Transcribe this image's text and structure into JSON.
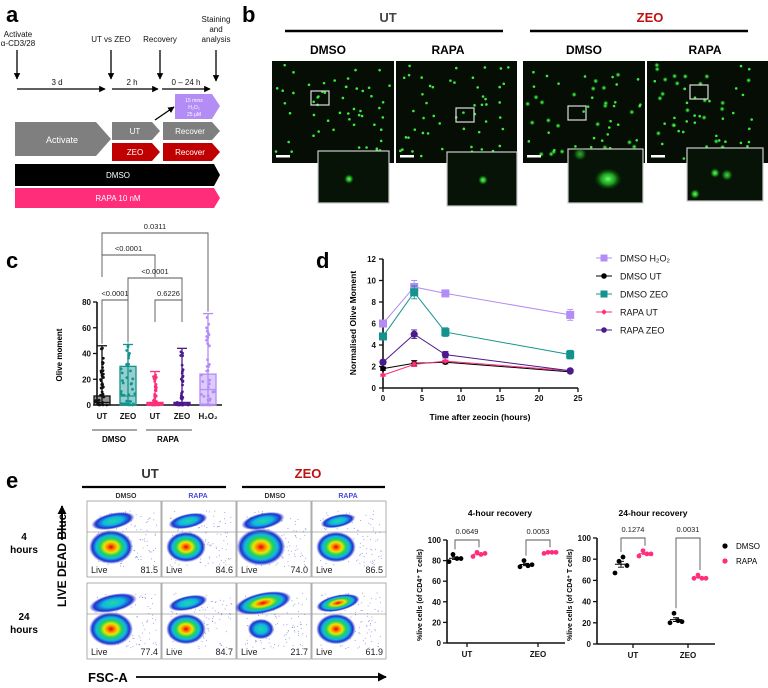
{
  "panel_labels": {
    "a": "a",
    "b": "b",
    "c": "c",
    "d": "d",
    "e": "e"
  },
  "colors": {
    "ut_gray": "#7f7f7f",
    "zeo_red": "#c00000",
    "dmso_black": "#000000",
    "rapa_pink": "#ff2d7a",
    "h2o2_purple": "#b38cf5",
    "teal": "#13938f",
    "rapa_zeo_purple": "#4b1a8c",
    "rapa_blue": "#4a4adf",
    "zeo_text_red": "#c01010"
  },
  "panel_a": {
    "events": {
      "activate_1": "Activate",
      "activate_2": "α-CD3/28",
      "ut_vs_zeo": "UT vs ZEO",
      "recovery": "Recovery",
      "staining_1": "Staining",
      "staining_2": "and",
      "staining_3": "analysis"
    },
    "durations": {
      "d1": "3 d",
      "d2": "2 h",
      "d3": "0 – 24 h"
    },
    "h2o2_box": {
      "line1": "15 mins",
      "line2": "H₂O₂",
      "line3": "25 µM"
    },
    "boxes": {
      "activate": "Activate",
      "ut": "UT",
      "zeo": "ZEO",
      "recover_ut": "Recover",
      "recover_zeo": "Recover",
      "dmso": "DMSO",
      "rapa": "RAPA 10 nM"
    }
  },
  "panel_b": {
    "groups": {
      "ut": "UT",
      "zeo": "ZEO"
    },
    "columns": [
      "DMSO",
      "RAPA",
      "DMSO",
      "RAPA"
    ]
  },
  "panel_e_flow": {
    "groups": {
      "ut": "UT",
      "zeo": "ZEO"
    },
    "columns": [
      "DMSO",
      "RAPA",
      "DMSO",
      "RAPA"
    ],
    "rows": [
      {
        "line1": "4",
        "line2": "hours"
      },
      {
        "line1": "24",
        "line2": "hours"
      }
    ],
    "gate_label": "Live",
    "values": [
      [
        "81.5",
        "84.6",
        "74.0",
        "86.5"
      ],
      [
        "77.4",
        "84.7",
        "21.7",
        "61.9"
      ]
    ],
    "ylabel": "LIVE DEAD Blue",
    "xlabel": "FSC-A"
  },
  "chart_data": [
    {
      "panel": "c",
      "type": "bar",
      "ylabel": "Olive moment",
      "ylim": [
        0,
        80
      ],
      "yticks": [
        "0",
        "20",
        "40",
        "60",
        "80"
      ],
      "categories": [
        "UT",
        "ZEO",
        "UT",
        "ZEO",
        "H₂O₂"
      ],
      "groups": [
        {
          "label": "DMSO",
          "members": [
            0,
            1
          ]
        },
        {
          "label": "RAPA",
          "members": [
            2,
            3
          ]
        }
      ],
      "bar_top": [
        7,
        30,
        2,
        2,
        24
      ],
      "median": [
        2,
        7,
        1,
        1,
        12
      ],
      "max": [
        46,
        47,
        26,
        44,
        71
      ],
      "colors": [
        "#111111",
        "#13938f",
        "#ff2d7a",
        "#4b1a8c",
        "#b38cf5"
      ],
      "comparisons": [
        {
          "pair": [
            0,
            4
          ],
          "p": "0.0311"
        },
        {
          "pair": [
            0,
            2
          ],
          "p": "<0.0001"
        },
        {
          "pair": [
            1,
            3
          ],
          "p": "<0.0001"
        },
        {
          "pair": [
            0,
            1
          ],
          "p": "<0.0001"
        },
        {
          "pair": [
            2,
            3
          ],
          "p": "0.6226"
        }
      ]
    },
    {
      "panel": "d",
      "type": "line",
      "xlabel": "Time after zeocin (hours)",
      "ylabel": "Normalised Olive Moment",
      "xlim": [
        0,
        25
      ],
      "ylim": [
        0,
        12
      ],
      "xticks": [
        "0",
        "5",
        "10",
        "15",
        "20",
        "25"
      ],
      "yticks": [
        "0",
        "2",
        "4",
        "6",
        "8",
        "10",
        "12"
      ],
      "x": [
        0,
        4,
        8,
        24
      ],
      "legend": "right",
      "series": [
        {
          "name": "DMSO H₂O₂",
          "values": [
            6.0,
            9.4,
            8.8,
            6.8
          ],
          "err": [
            0.2,
            0.6,
            0.3,
            0.5
          ],
          "color": "#b38cf5",
          "marker": "square"
        },
        {
          "name": "DMSO UT",
          "values": [
            1.8,
            2.3,
            2.4,
            1.5
          ],
          "err": [
            0.15,
            0.25,
            0.15,
            0.1
          ],
          "color": "#000000",
          "marker": "circle"
        },
        {
          "name": "DMSO ZEO",
          "values": [
            4.8,
            8.9,
            5.2,
            3.1
          ],
          "err": [
            0.2,
            0.6,
            0.4,
            0.4
          ],
          "color": "#13938f",
          "marker": "square"
        },
        {
          "name": "RAPA UT",
          "values": [
            1.2,
            2.2,
            2.5,
            1.6
          ],
          "err": [
            0.1,
            0.2,
            0.1,
            0.1
          ],
          "color": "#ff2d7a",
          "marker": "diamond"
        },
        {
          "name": "RAPA ZEO",
          "values": [
            2.4,
            5.0,
            3.1,
            1.6
          ],
          "err": [
            0.2,
            0.4,
            0.3,
            0.1
          ],
          "color": "#4b1a8c",
          "marker": "circle"
        }
      ]
    },
    {
      "panel": "e-4h",
      "type": "scatter",
      "title": "4-hour recovery",
      "ylabel": "%live cells (of CD4⁺ T cells)",
      "ylim": [
        0,
        100
      ],
      "yticks": [
        "0",
        "20",
        "40",
        "60",
        "80",
        "100"
      ],
      "categories": [
        "UT",
        "ZEO"
      ],
      "series": [
        {
          "name": "DMSO",
          "color": "#000000",
          "values": [
            [
              79,
              86,
              82,
              82
            ],
            [
              74,
              80,
              75,
              76
            ]
          ]
        },
        {
          "name": "RAPA",
          "color": "#ff2d7a",
          "values": [
            [
              84,
              88,
              86,
              87
            ],
            [
              87,
              88,
              88,
              88
            ]
          ]
        }
      ],
      "p_values": [
        "0.0649",
        "0.0053"
      ]
    },
    {
      "panel": "e-24h",
      "type": "scatter",
      "title": "24-hour recovery",
      "ylabel": "%live cells (of CD4⁺ T cells)",
      "ylim": [
        0,
        100
      ],
      "yticks": [
        "0",
        "20",
        "40",
        "60",
        "80",
        "100"
      ],
      "categories": [
        "UT",
        "ZEO"
      ],
      "series": [
        {
          "name": "DMSO",
          "color": "#000000",
          "values": [
            [
              67,
              78,
              82,
              74
            ],
            [
              20,
              29,
              22,
              21
            ]
          ]
        },
        {
          "name": "RAPA",
          "color": "#ff2d7a",
          "values": [
            [
              83,
              88,
              85,
              85
            ],
            [
              62,
              65,
              62,
              62
            ]
          ]
        }
      ],
      "p_values": [
        "0.1274",
        "0.0031"
      ],
      "legend": "right"
    }
  ]
}
